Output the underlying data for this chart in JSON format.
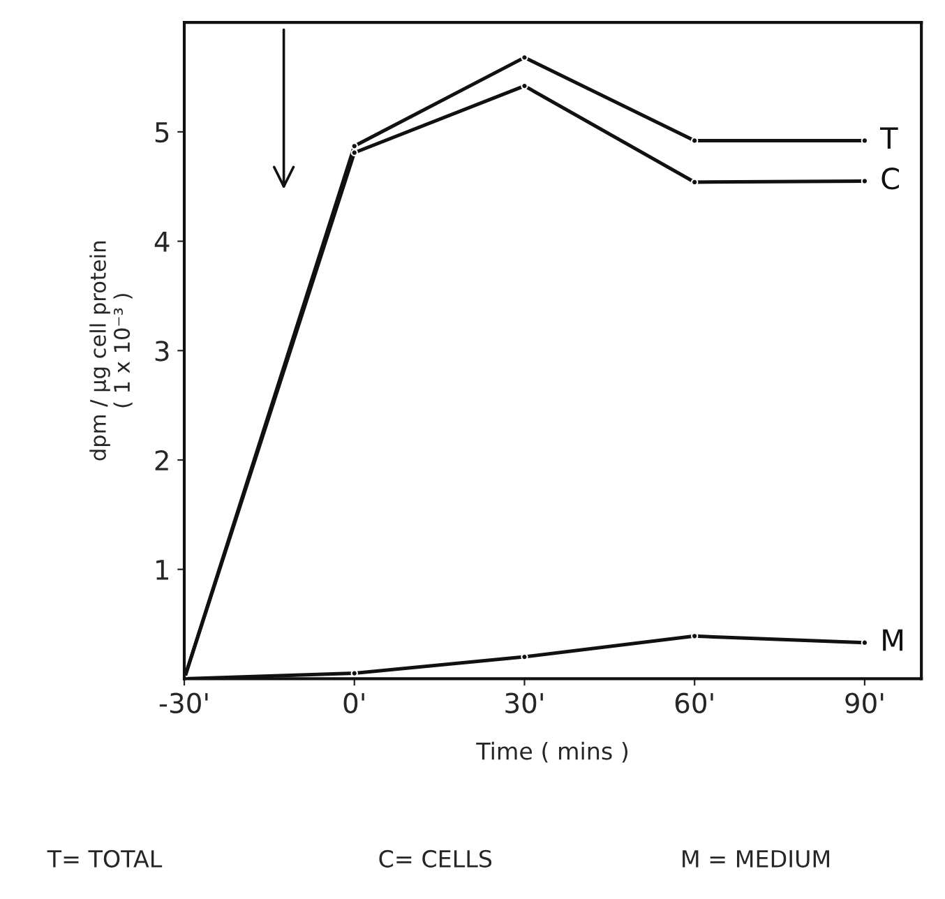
{
  "chart_data": {
    "type": "line",
    "xlabel": "Time ( mins )",
    "ylabel": "dpm / µg cell protein\n( 1 x 10⁻³ )",
    "x": [
      -30,
      0,
      30,
      60,
      90
    ],
    "series": [
      {
        "name": "T",
        "color": "#111111",
        "values": [
          0,
          4.87,
          5.68,
          4.92,
          4.92
        ]
      },
      {
        "name": "C",
        "color": "#111111",
        "values": [
          0,
          4.81,
          5.42,
          4.54,
          4.55
        ]
      },
      {
        "name": "M",
        "color": "#111111",
        "values": [
          0,
          0.05,
          0.2,
          0.39,
          0.33
        ]
      }
    ],
    "xlim": [
      -30,
      100
    ],
    "ylim": [
      0,
      6
    ],
    "xticks": [
      {
        "value": -30,
        "label": "-30'"
      },
      {
        "value": 0,
        "label": "0'"
      },
      {
        "value": 30,
        "label": "30'"
      },
      {
        "value": 60,
        "label": "60'"
      },
      {
        "value": 90,
        "label": "90'"
      }
    ],
    "yticks": [
      1,
      2,
      3,
      4,
      5
    ],
    "marker": "circle",
    "line_style": "solid",
    "grid": false,
    "annotations": [
      "T= TOTAL",
      "C= CELLS",
      "M = MEDIUM"
    ]
  }
}
